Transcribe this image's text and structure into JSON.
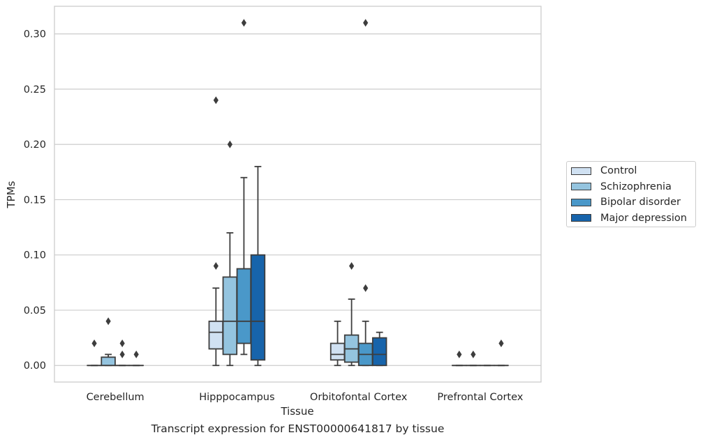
{
  "chart_data": {
    "type": "box",
    "title": "",
    "xlabel": "Tissue",
    "ylabel": "TPMs",
    "caption": "Transcript expression for ENST00000641817 by tissue",
    "ylim": [
      -0.015,
      0.325
    ],
    "yticks": [
      "0.00",
      "0.05",
      "0.10",
      "0.15",
      "0.20",
      "0.25",
      "0.30"
    ],
    "ytick_values": [
      0,
      0.05,
      0.1,
      0.15,
      0.2,
      0.25,
      0.3
    ],
    "grid": "horizontal",
    "legend_placement": "right",
    "categories": [
      "Cerebellum",
      "Hipppocampus",
      "Orbitofontal Cortex",
      "Prefrontal Cortex"
    ],
    "series": [
      {
        "name": "Control",
        "color": "#d0e1f2",
        "boxes": [
          {
            "min": 0,
            "q1": 0,
            "median": 0,
            "q3": 0,
            "max": 0,
            "outliers": [
              0.02
            ]
          },
          {
            "min": 0,
            "q1": 0.015,
            "median": 0.03,
            "q3": 0.04,
            "max": 0.07,
            "outliers": [
              0.09,
              0.24
            ]
          },
          {
            "min": 0,
            "q1": 0.005,
            "median": 0.01,
            "q3": 0.02,
            "max": 0.04,
            "outliers": []
          },
          {
            "min": 0,
            "q1": 0,
            "median": 0,
            "q3": 0,
            "max": 0,
            "outliers": [
              0.01
            ]
          }
        ]
      },
      {
        "name": "Schizophrenia",
        "color": "#94c4df",
        "boxes": [
          {
            "min": 0,
            "q1": 0,
            "median": 0,
            "q3": 0.0075,
            "max": 0.01,
            "outliers": [
              0.04
            ]
          },
          {
            "min": 0,
            "q1": 0.01,
            "median": 0.04,
            "q3": 0.08,
            "max": 0.12,
            "outliers": [
              0.2
            ]
          },
          {
            "min": 0,
            "q1": 0.003,
            "median": 0.015,
            "q3": 0.0275,
            "max": 0.06,
            "outliers": [
              0.09
            ]
          },
          {
            "min": 0,
            "q1": 0,
            "median": 0,
            "q3": 0,
            "max": 0,
            "outliers": [
              0.01
            ]
          }
        ]
      },
      {
        "name": "Bipolar disorder",
        "color": "#4a98c9",
        "boxes": [
          {
            "min": 0,
            "q1": 0,
            "median": 0,
            "q3": 0,
            "max": 0,
            "outliers": [
              0.01,
              0.02
            ]
          },
          {
            "min": 0.01,
            "q1": 0.02,
            "median": 0.04,
            "q3": 0.0875,
            "max": 0.17,
            "outliers": [
              0.31
            ]
          },
          {
            "min": 0,
            "q1": 0,
            "median": 0.01,
            "q3": 0.02,
            "max": 0.04,
            "outliers": [
              0.07,
              0.31
            ]
          },
          {
            "min": 0,
            "q1": 0,
            "median": 0,
            "q3": 0,
            "max": 0,
            "outliers": []
          }
        ]
      },
      {
        "name": "Major depression",
        "color": "#1764ab",
        "boxes": [
          {
            "min": 0,
            "q1": 0,
            "median": 0,
            "q3": 0,
            "max": 0,
            "outliers": [
              0.01
            ]
          },
          {
            "min": 0,
            "q1": 0.005,
            "median": 0.04,
            "q3": 0.1,
            "max": 0.18,
            "outliers": []
          },
          {
            "min": 0,
            "q1": 0,
            "median": 0.01,
            "q3": 0.025,
            "max": 0.03,
            "outliers": []
          },
          {
            "min": 0,
            "q1": 0,
            "median": 0,
            "q3": 0,
            "max": 0,
            "outliers": [
              0.02
            ]
          }
        ]
      }
    ]
  }
}
